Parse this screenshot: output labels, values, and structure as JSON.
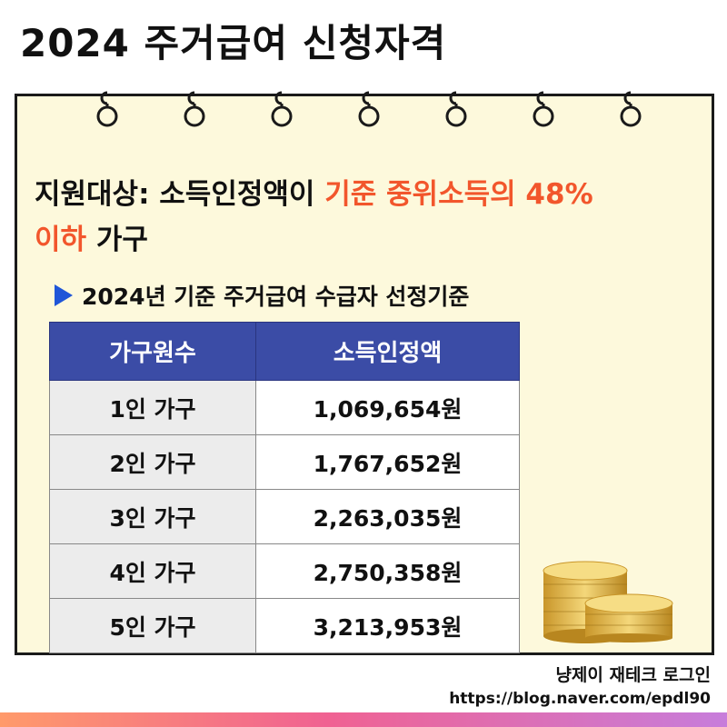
{
  "title": "2024 주거급여 신청자격",
  "support": {
    "label": "지원대상:",
    "text_black": "소득인정액이",
    "text_red": "기준 중위소득의 48% 이하",
    "text_red_1": "기준 중위소득의 48%",
    "text_red_2": "이하",
    "text_end": "가구"
  },
  "subheading": "2024년 기준 주거급여 수급자 선정기준",
  "table": {
    "headers": [
      "가구원수",
      "소득인정액"
    ],
    "rows": [
      [
        "1인 가구",
        "1,069,654원"
      ],
      [
        "2인 가구",
        "1,767,652원"
      ],
      [
        "3인 가구",
        "2,263,035원"
      ],
      [
        "4인 가구",
        "2,750,358원"
      ],
      [
        "5인 가구",
        "3,213,953원"
      ]
    ]
  },
  "credit": {
    "blog": "냥제이 재테크 로그인",
    "url": "https://blog.naver.com/epdl90"
  },
  "colors": {
    "card_bg": "#fdf9dc",
    "header_bg": "#3b4ca6",
    "accent_red": "#f2562c",
    "triangle": "#1f56d8"
  },
  "icons": [
    "notebook-ring-icon",
    "triangle-bullet-icon",
    "gold-coins-icon"
  ]
}
